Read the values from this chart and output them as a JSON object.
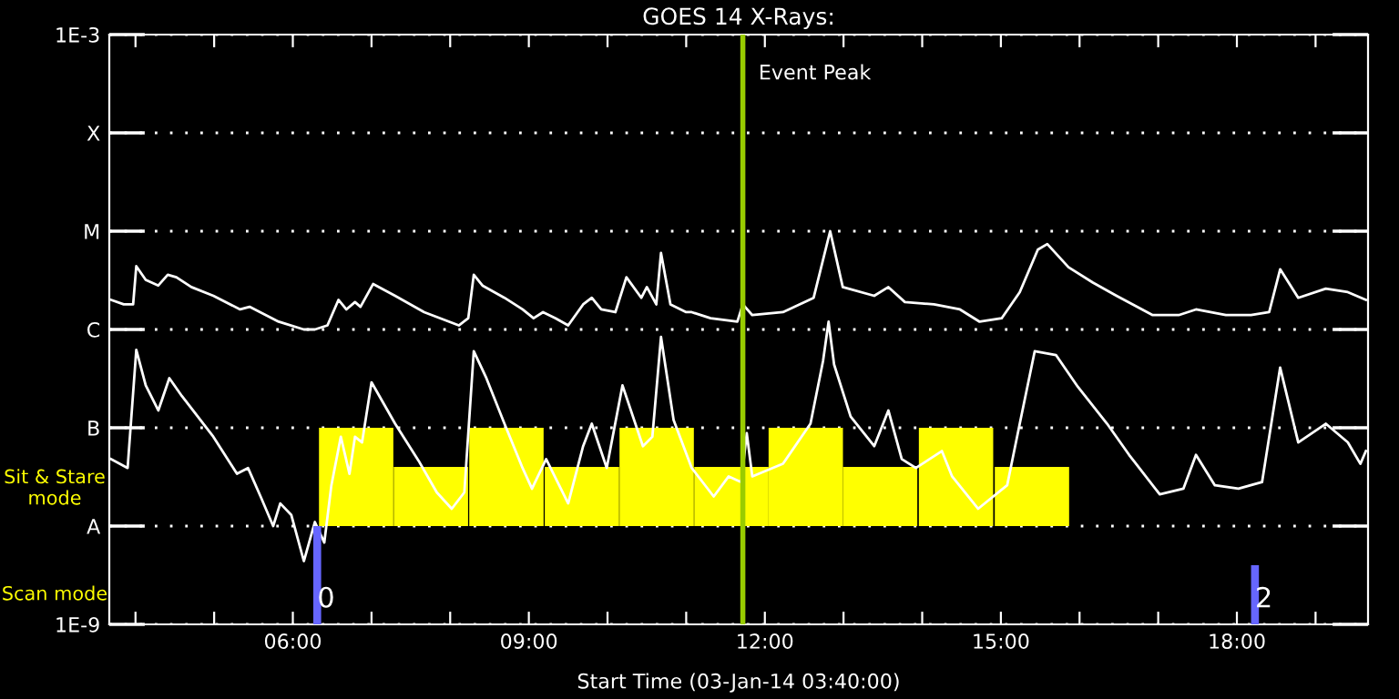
{
  "chart_data": {
    "type": "line",
    "title": "GOES 14 X-Rays:",
    "xlabel": "Start Time (03-Jan-14 03:40:00)",
    "log": "y",
    "grid": "y",
    "legend": false,
    "xlim": [
      3.667,
      19.667
    ],
    "xticks": [
      {
        "value": 4,
        "label": null
      },
      {
        "value": 5,
        "label": null
      },
      {
        "value": 6,
        "label": "06:00"
      },
      {
        "value": 7,
        "label": null
      },
      {
        "value": 8,
        "label": null
      },
      {
        "value": 9,
        "label": "09:00"
      },
      {
        "value": 10,
        "label": null
      },
      {
        "value": 11,
        "label": null
      },
      {
        "value": 12,
        "label": "12:00"
      },
      {
        "value": 13,
        "label": null
      },
      {
        "value": 14,
        "label": null
      },
      {
        "value": 15,
        "label": "15:00"
      },
      {
        "value": 16,
        "label": null
      },
      {
        "value": 17,
        "label": null
      },
      {
        "value": 18,
        "label": "18:00"
      },
      {
        "value": 19,
        "label": null
      }
    ],
    "ylim": [
      1e-09,
      0.001
    ],
    "yticks": [
      {
        "value": 1e-09,
        "label": "1E-9"
      },
      {
        "value": 1e-08,
        "label": "A"
      },
      {
        "value": 1e-07,
        "label": "B"
      },
      {
        "value": 1e-06,
        "label": "C"
      },
      {
        "value": 1e-05,
        "label": "M"
      },
      {
        "value": 0.0001,
        "label": "X"
      },
      {
        "value": 0.001,
        "label": "1E-3"
      }
    ],
    "ref_lines": [
      {
        "axis": "x",
        "value": 11.72,
        "label": "Event Peak",
        "color": "#99cc00"
      }
    ],
    "annotations": [
      "Sit & Stare\nmode",
      "Scan mode"
    ],
    "series": [
      {
        "type": "bar",
        "color": "#ffff00",
        "x": [
          6.805,
          7.755,
          8.715,
          9.675,
          10.625,
          11.575,
          12.52,
          13.465,
          14.43,
          15.395
        ],
        "base": [
          1e-08,
          1e-08,
          1e-08,
          1e-08,
          1e-08,
          1e-08,
          1e-08,
          1e-08,
          1e-08,
          1e-08
        ],
        "values": [
          9e-08,
          3e-08,
          9e-08,
          3e-08,
          9e-08,
          3e-08,
          9e-08,
          3e-08,
          9e-08,
          3e-08
        ]
      },
      {
        "color": "#ffffff",
        "x": [
          3.69,
          3.85,
          3.97,
          4.01,
          4.13,
          4.29,
          4.41,
          4.52,
          4.71,
          4.99,
          5.33,
          5.45,
          5.82,
          6.14,
          6.28,
          6.44,
          6.58,
          6.68,
          6.79,
          6.86,
          7.02,
          7.3,
          7.67,
          8.11,
          8.23,
          8.3,
          8.41,
          8.69,
          8.92,
          9.06,
          9.18,
          9.34,
          9.5,
          9.69,
          9.8,
          9.92,
          10.1,
          10.24,
          10.43,
          10.5,
          10.62,
          10.68,
          10.8,
          11.0,
          11.07,
          11.31,
          11.65,
          11.72,
          11.84,
          12.23,
          12.62,
          12.83,
          12.99,
          13.39,
          13.57,
          13.78,
          14.15,
          14.48,
          14.73,
          15.01,
          15.24,
          15.47,
          15.59,
          15.86,
          16.17,
          16.47,
          16.93,
          17.26,
          17.48,
          17.86,
          18.18,
          18.41,
          18.55,
          18.78,
          19.13,
          19.41,
          19.64
        ],
        "values": [
          2e-06,
          1.8e-06,
          1.8e-06,
          4.4e-06,
          3.2e-06,
          2.8e-06,
          3.6e-06,
          3.4e-06,
          2.7e-06,
          2.2e-06,
          1.6e-06,
          1.7e-06,
          1.2e-06,
          1e-06,
          1e-06,
          1.1e-06,
          2e-06,
          1.6e-06,
          1.9e-06,
          1.7e-06,
          2.9e-06,
          2.2e-06,
          1.5e-06,
          1.1e-06,
          1.3e-06,
          3.6e-06,
          2.8e-06,
          2.1e-06,
          1.6e-06,
          1.3e-06,
          1.5e-06,
          1.3e-06,
          1.1e-06,
          1.8e-06,
          2.1e-06,
          1.6e-06,
          1.5e-06,
          3.4e-06,
          2.1e-06,
          2.7e-06,
          1.8e-06,
          6e-06,
          1.8e-06,
          1.5e-06,
          1.5e-06,
          1.3e-06,
          1.2e-06,
          1.8e-06,
          1.4e-06,
          1.5e-06,
          2.1e-06,
          1e-05,
          2.7e-06,
          2.2e-06,
          2.7e-06,
          1.9e-06,
          1.8e-06,
          1.6e-06,
          1.2e-06,
          1.3e-06,
          2.4e-06,
          6.5e-06,
          7.4e-06,
          4.3e-06,
          3e-06,
          2.2e-06,
          1.4e-06,
          1.4e-06,
          1.6e-06,
          1.4e-06,
          1.4e-06,
          1.5e-06,
          4.1e-06,
          2.1e-06,
          2.6e-06,
          2.4e-06,
          2e-06
        ]
      },
      {
        "color": "#ffffff",
        "x": [
          3.69,
          3.9,
          4.01,
          4.13,
          4.29,
          4.43,
          4.59,
          4.99,
          5.29,
          5.43,
          5.59,
          5.75,
          5.84,
          5.98,
          6.14,
          6.28,
          6.4,
          6.49,
          6.61,
          6.72,
          6.79,
          6.88,
          7.0,
          7.3,
          7.6,
          7.83,
          8.02,
          8.18,
          8.3,
          8.46,
          8.69,
          8.92,
          9.04,
          9.22,
          9.5,
          9.69,
          9.8,
          9.99,
          10.19,
          10.45,
          10.57,
          10.68,
          10.84,
          11.07,
          11.35,
          11.54,
          11.7,
          11.77,
          11.84,
          12.23,
          12.58,
          12.74,
          12.81,
          12.88,
          13.09,
          13.39,
          13.57,
          13.74,
          13.92,
          14.25,
          14.38,
          14.71,
          15.08,
          15.24,
          15.43,
          15.7,
          15.98,
          16.35,
          16.63,
          17.02,
          17.32,
          17.48,
          17.72,
          18.02,
          18.32,
          18.55,
          18.78,
          19.13,
          19.41,
          19.57,
          19.64
        ],
        "values": [
          4.8e-08,
          3.9e-08,
          6.2e-07,
          2.7e-07,
          1.5e-07,
          3.2e-07,
          2.1e-07,
          8.1e-08,
          3.4e-08,
          3.9e-08,
          2e-08,
          1e-08,
          1.7e-08,
          1.3e-08,
          4.4e-09,
          1.1e-08,
          6.8e-09,
          2.6e-08,
          8.1e-08,
          3.4e-08,
          8.1e-08,
          7.1e-08,
          2.9e-07,
          1.1e-07,
          4.6e-08,
          2.2e-08,
          1.5e-08,
          2.2e-08,
          6e-07,
          3.2e-07,
          1.1e-07,
          3.9e-08,
          2.4e-08,
          4.8e-08,
          1.7e-08,
          6.5e-08,
          1.1e-07,
          3.9e-08,
          2.7e-07,
          6.5e-08,
          8.1e-08,
          8.4e-07,
          1.2e-07,
          3.9e-08,
          2e-08,
          3.2e-08,
          2.8e-08,
          8.8e-08,
          3.2e-08,
          4.3e-08,
          1.1e-07,
          4.8e-07,
          1.2e-06,
          4.4e-07,
          1.3e-07,
          6.5e-08,
          1.5e-07,
          4.8e-08,
          3.9e-08,
          5.8e-08,
          3.2e-08,
          1.5e-08,
          2.6e-08,
          1.1e-07,
          6e-07,
          5.5e-07,
          2.6e-07,
          1.1e-07,
          5.3e-08,
          2.1e-08,
          2.4e-08,
          5.3e-08,
          2.6e-08,
          2.4e-08,
          2.8e-08,
          4.1e-07,
          7.1e-08,
          1.1e-07,
          7.1e-08,
          4.3e-08,
          5.8e-08
        ]
      },
      {
        "type": "bar",
        "name": "0",
        "color": "#6666ff",
        "x": [
          6.31
        ],
        "base": [
          1e-09
        ],
        "values": [
          9e-09
        ]
      },
      {
        "type": "bar",
        "name": "2",
        "color": "#6666ff",
        "x": [
          18.23
        ],
        "base": [
          1e-09
        ],
        "values": [
          3e-09
        ]
      }
    ]
  }
}
